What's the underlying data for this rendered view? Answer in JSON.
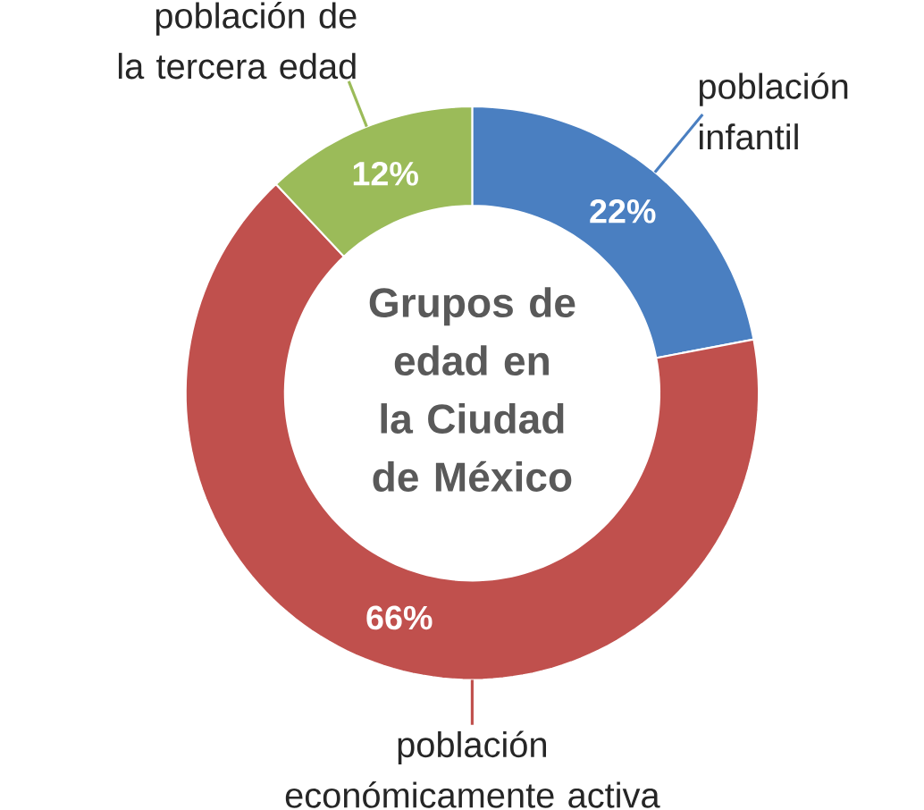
{
  "chart_data": {
    "type": "donut",
    "title": "Grupos de edad en la Ciudad de México",
    "categories": [
      "población infantil",
      "población económicamente activa",
      "población de la tercera edad"
    ],
    "values": [
      22,
      66,
      12
    ],
    "colors": [
      "#4a7fc1",
      "#c0504d",
      "#9bbb59"
    ],
    "value_labels": [
      "22%",
      "66%",
      "12%"
    ]
  }
}
